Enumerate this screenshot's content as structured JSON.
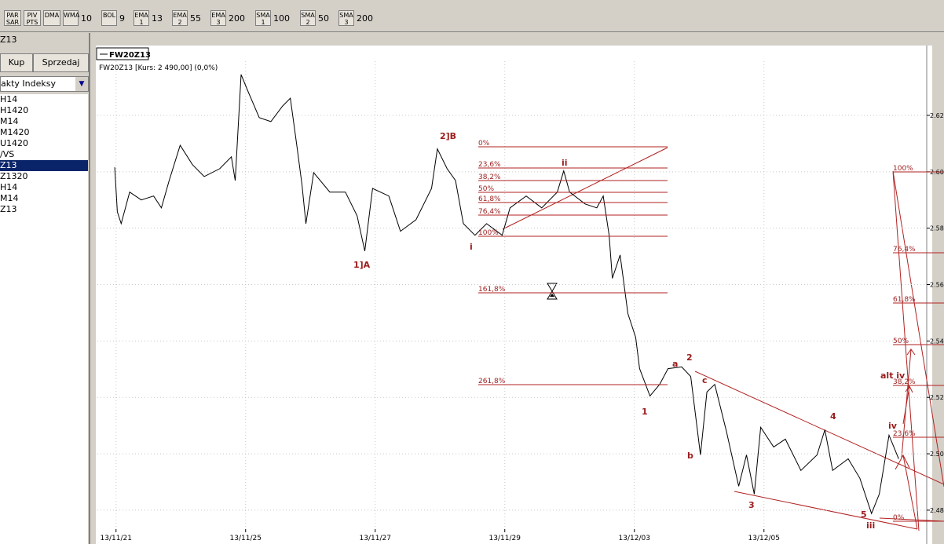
{
  "toolbar": [
    {
      "label": "PAR SAR"
    },
    {
      "label": "PIV PTS"
    },
    {
      "label": "DMA"
    },
    {
      "label": "WMA",
      "value": "10"
    },
    {
      "label": "BOL",
      "value": "9"
    },
    {
      "label": "EMA 1",
      "value": "13"
    },
    {
      "label": "EMA 2",
      "value": "55"
    },
    {
      "label": "EMA 3",
      "value": "200"
    },
    {
      "label": "SMA 1",
      "value": "100"
    },
    {
      "label": "SMA 2",
      "value": "50"
    },
    {
      "label": "SMA 3",
      "value": "200"
    }
  ],
  "sidebar": {
    "symbol": "Z13",
    "buy": "Kup",
    "sell": "Sprzedaj",
    "group": "akty Indeksy",
    "items": [
      "H14",
      "H1420",
      "M14",
      "M1420",
      "U1420",
      "/VS",
      "Z13",
      "Z1320",
      "H14",
      "M14",
      "Z13"
    ]
  },
  "chart_data": {
    "type": "line",
    "legend": "FW20Z13",
    "info": "FW20Z13 [Kurs: 2 490,00] (0,0%)",
    "color": "#000000",
    "x": [
      -0.02,
      0.02,
      0.08,
      0.21,
      0.39,
      0.58,
      0.7,
      0.82,
      0.99,
      1.18,
      1.36,
      1.6,
      1.78,
      1.84,
      1.93,
      2.03,
      2.21,
      2.39,
      2.57,
      2.69,
      2.79,
      2.87,
      2.93,
      3.05,
      3.3,
      3.54,
      3.72,
      3.84,
      3.96,
      4.21,
      4.39,
      4.63,
      4.87,
      4.96,
      5.11,
      5.24,
      5.36,
      5.54,
      5.72,
      5.96,
      6.08,
      6.33,
      6.57,
      6.81,
      6.91,
      7.0,
      7.24,
      7.42,
      7.52,
      7.61,
      7.66,
      7.78,
      7.9,
      8.02,
      8.08,
      8.24,
      8.39,
      8.52,
      8.73,
      8.87,
      9.02,
      9.12,
      9.24,
      9.42,
      9.61,
      9.73,
      9.85,
      9.95,
      10.15,
      10.33,
      10.57,
      10.82,
      10.94,
      11.06,
      11.3,
      11.48,
      11.66,
      11.78,
      11.93,
      12.08
    ],
    "values": [
      2.6016,
      2.5858,
      2.5816,
      2.5928,
      2.59,
      2.5914,
      2.5872,
      2.5969,
      2.6094,
      2.6025,
      2.5983,
      2.6011,
      2.6053,
      2.5969,
      2.6345,
      2.6289,
      2.6192,
      2.6178,
      2.6233,
      2.6261,
      2.6094,
      2.5955,
      2.5816,
      2.5997,
      2.5928,
      2.5928,
      2.5844,
      2.5719,
      2.5941,
      2.5914,
      2.5789,
      2.583,
      2.5941,
      2.6081,
      2.6011,
      2.5969,
      2.5816,
      2.5775,
      2.5816,
      2.5775,
      2.5872,
      2.5914,
      2.5872,
      2.5928,
      2.6003,
      2.5928,
      2.5886,
      2.5872,
      2.5914,
      2.5775,
      2.5622,
      2.5705,
      2.5497,
      2.5413,
      2.5302,
      2.5205,
      2.5246,
      2.5302,
      2.5308,
      2.5274,
      2.4996,
      2.5219,
      2.5246,
      2.508,
      2.4885,
      2.4996,
      2.4857,
      2.5094,
      2.5024,
      2.5052,
      2.4941,
      2.4996,
      2.5085,
      2.4941,
      2.4982,
      2.4913,
      2.4788,
      2.4857,
      2.5066,
      2.4982
    ],
    "xlim": [
      -0.3,
      12.5
    ],
    "xticks": [
      {
        "value": 0,
        "label": "13/11/21"
      },
      {
        "value": 2,
        "label": "13/11/25"
      },
      {
        "value": 4,
        "label": "13/11/27"
      },
      {
        "value": 6,
        "label": "13/11/29"
      },
      {
        "value": 8,
        "label": "13/12/03"
      },
      {
        "value": 10,
        "label": "13/12/05"
      }
    ],
    "ylim": [
      2.4758,
      2.6392
    ],
    "yticks": [
      2.48,
      {
        "value": 2.5,
        "label": "2.50"
      },
      2.52,
      2.54,
      2.56,
      2.58,
      {
        "value": 2.6,
        "label": "2.60"
      },
      2.62
    ],
    "grid": true,
    "fib_left": [
      "0%",
      "23,6%",
      "38,2%",
      "50%",
      "61,8%",
      "76,4%",
      "100%",
      "161,8%",
      "261,8%"
    ],
    "fib_right": [
      "100%",
      "76,4%",
      "61,8%",
      "50%",
      "38,2%",
      "23,6%",
      "0%"
    ],
    "waves": [
      "1]A",
      "2]B",
      "i",
      "ii",
      "1",
      "a",
      "2",
      "b",
      "c",
      "3",
      "4",
      "5",
      "iii",
      "iv",
      "alt iv"
    ]
  }
}
